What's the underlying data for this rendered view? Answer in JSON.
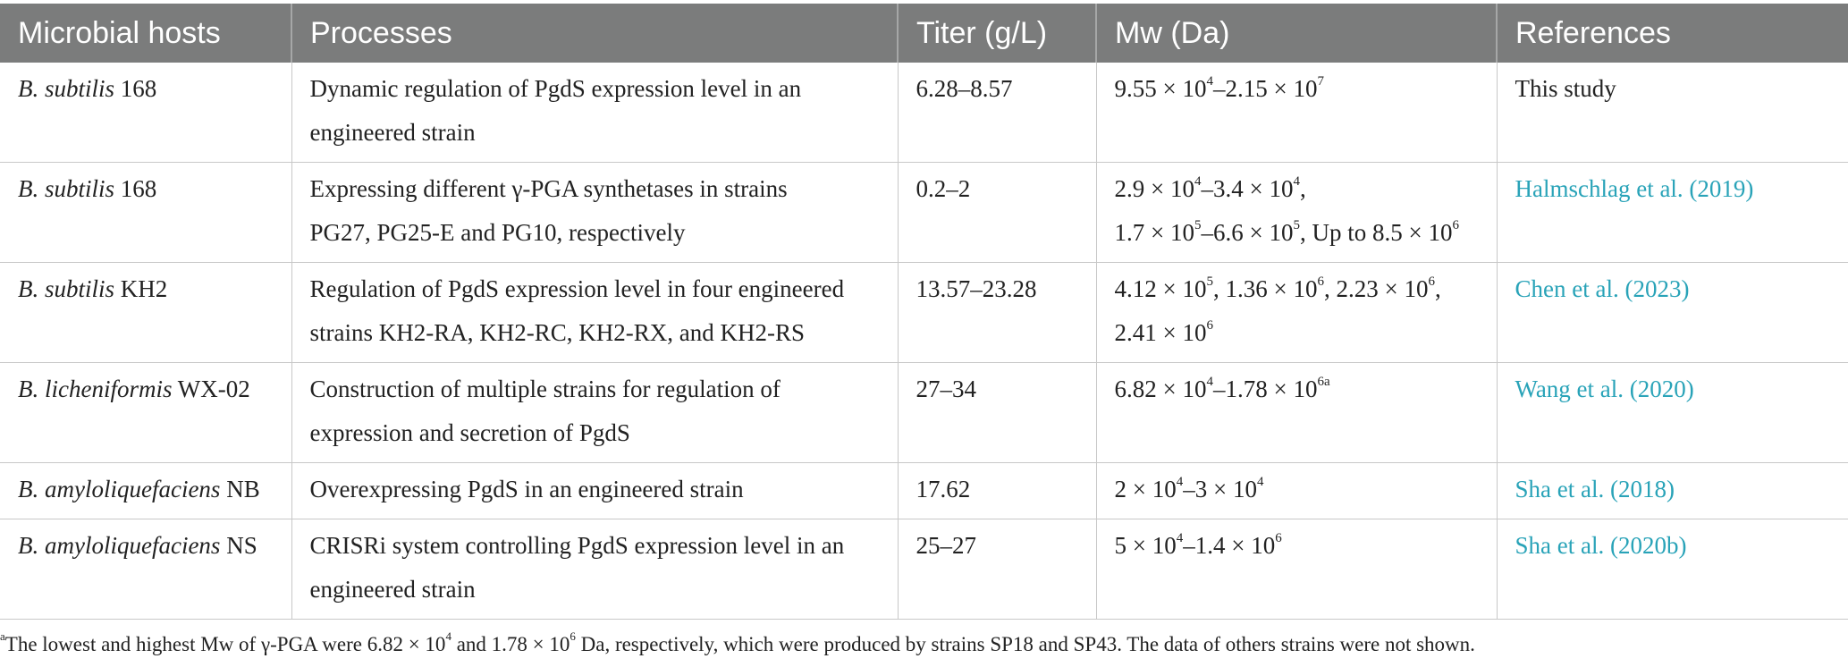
{
  "headers": [
    "Microbial hosts",
    "Processes",
    "Titer (g/L)",
    "Mw (Da)",
    "References"
  ],
  "rows": [
    {
      "host_italic": "B. subtilis",
      "host_rest": " 168",
      "process_lines": [
        "Dynamic regulation of PgdS expression level in an",
        "engineered strain"
      ],
      "titer": "6.28–8.57",
      "mw_lines": [
        [
          {
            "t": "9.55 × 10"
          },
          {
            "sup": "4"
          },
          {
            "t": "–2.15 × 10"
          },
          {
            "sup": "7"
          }
        ]
      ],
      "reference": "This study",
      "reference_is_link": false
    },
    {
      "host_italic": "B. subtilis",
      "host_rest": " 168",
      "process_lines": [
        "Expressing different γ-PGA synthetases in strains",
        "PG27, PG25-E and PG10, respectively"
      ],
      "titer": "0.2–2",
      "mw_lines": [
        [
          {
            "t": "2.9 × 10"
          },
          {
            "sup": "4"
          },
          {
            "t": "–3.4 × 10"
          },
          {
            "sup": "4"
          },
          {
            "t": ","
          }
        ],
        [
          {
            "t": "1.7 × 10"
          },
          {
            "sup": "5"
          },
          {
            "t": "–6.6 × 10"
          },
          {
            "sup": "5"
          },
          {
            "t": ", Up to 8.5 × 10"
          },
          {
            "sup": "6"
          }
        ]
      ],
      "reference": "Halmschlag et al. (2019)",
      "reference_is_link": true
    },
    {
      "host_italic": "B. subtilis",
      "host_rest": " KH2",
      "process_lines": [
        "Regulation of PgdS expression level in four engineered",
        "strains KH2-RA, KH2-RC, KH2-RX, and KH2-RS"
      ],
      "titer": "13.57–23.28",
      "mw_lines": [
        [
          {
            "t": "4.12 × 10"
          },
          {
            "sup": "5"
          },
          {
            "t": ", 1.36 × 10"
          },
          {
            "sup": "6"
          },
          {
            "t": ", 2.23 × 10"
          },
          {
            "sup": "6"
          },
          {
            "t": ","
          }
        ],
        [
          {
            "t": "2.41 × 10"
          },
          {
            "sup": "6"
          }
        ]
      ],
      "reference": "Chen et al. (2023)",
      "reference_is_link": true
    },
    {
      "host_italic": "B. licheniformis",
      "host_rest": " WX-02",
      "process_lines": [
        "Construction of multiple strains for regulation of",
        "expression and secretion of PgdS"
      ],
      "titer": "27–34",
      "mw_lines": [
        [
          {
            "t": "6.82 × 10"
          },
          {
            "sup": "4"
          },
          {
            "t": "–1.78 × 10"
          },
          {
            "sup": "6a"
          }
        ]
      ],
      "reference": "Wang et al. (2020)",
      "reference_is_link": true
    },
    {
      "host_italic": "B. amyloliquefaciens",
      "host_rest": " NB",
      "process_lines": [
        "Overexpressing PgdS in an engineered strain"
      ],
      "titer": "17.62",
      "mw_lines": [
        [
          {
            "t": "2 × 10"
          },
          {
            "sup": "4"
          },
          {
            "t": "–3 × 10"
          },
          {
            "sup": "4"
          }
        ]
      ],
      "reference": "Sha et al. (2018)",
      "reference_is_link": true
    },
    {
      "host_italic": "B. amyloliquefaciens",
      "host_rest": " NS",
      "process_lines": [
        "CRISRi system controlling PgdS expression level in an",
        "engineered strain"
      ],
      "titer": "25–27",
      "mw_lines": [
        [
          {
            "t": "5 × 10"
          },
          {
            "sup": "4"
          },
          {
            "t": "–1.4 × 10"
          },
          {
            "sup": "6"
          }
        ]
      ],
      "reference": "Sha et al. (2020b)",
      "reference_is_link": true
    }
  ],
  "footnote": [
    {
      "sup": "a"
    },
    {
      "t": "The lowest and highest Mw of γ-PGA were 6.82 × 10"
    },
    {
      "sup": "4"
    },
    {
      "t": " and 1.78 × 10"
    },
    {
      "sup": "6"
    },
    {
      "t": " Da, respectively, which were produced by strains SP18 and SP43. The data of others strains were not shown."
    }
  ]
}
